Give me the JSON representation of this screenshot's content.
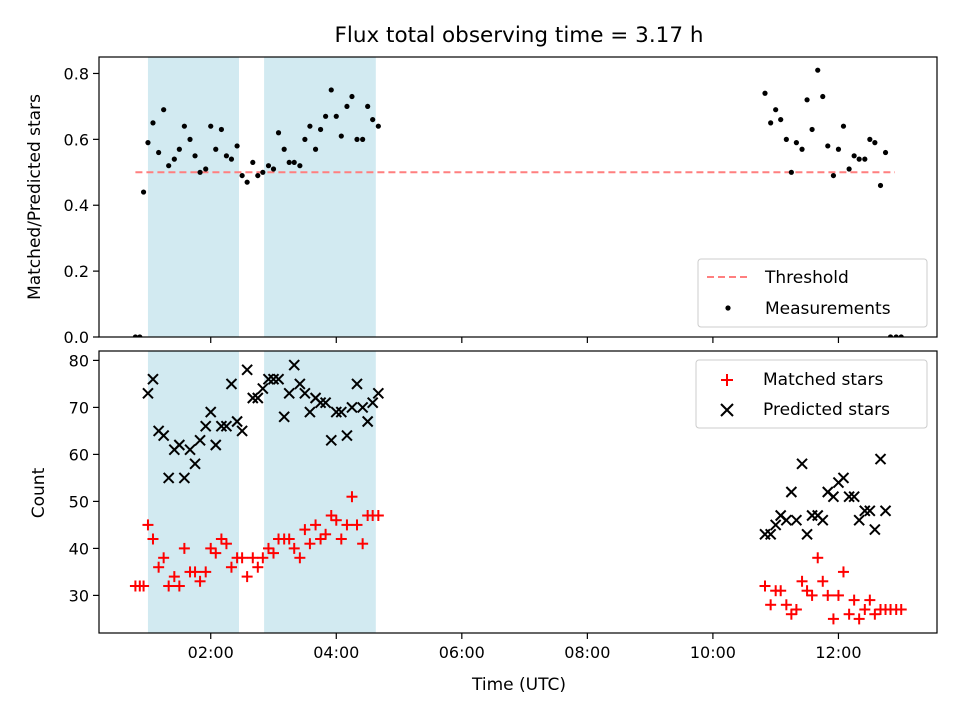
{
  "title": "Flux total observing time = 3.17 h",
  "colors": {
    "threshold": "#ff7f7f",
    "band": "#add8e6",
    "matched": "#ff0000",
    "predicted": "#000000",
    "measurement": "#000000"
  },
  "chart_data": [
    {
      "type": "scatter",
      "ylabel": "Matched/Predicted stars",
      "ylim": [
        0,
        0.85
      ],
      "yticks": [
        0.0,
        0.2,
        0.4,
        0.6,
        0.8
      ],
      "ytick_labels": [
        "0.0",
        "0.2",
        "0.4",
        "0.6",
        "0.8"
      ],
      "xlim": [
        0.22,
        13.57
      ],
      "xticks": [
        2,
        4,
        6,
        8,
        10,
        12
      ],
      "shaded_intervals": [
        [
          1.0,
          2.45
        ],
        [
          2.85,
          4.63
        ]
      ],
      "legend": {
        "position": "lower right",
        "entries": [
          "Threshold",
          "Measurements"
        ]
      },
      "threshold": {
        "name": "Threshold",
        "y": 0.5,
        "x_range": [
          0.8,
          12.9
        ],
        "style": "dashed"
      },
      "series": [
        {
          "name": "Measurements",
          "marker": "dot",
          "points": [
            [
              0.8,
              0.0
            ],
            [
              0.87,
              0.0
            ],
            [
              0.93,
              0.44
            ],
            [
              1.0,
              0.59
            ],
            [
              1.08,
              0.65
            ],
            [
              1.17,
              0.56
            ],
            [
              1.25,
              0.69
            ],
            [
              1.33,
              0.52
            ],
            [
              1.42,
              0.54
            ],
            [
              1.5,
              0.57
            ],
            [
              1.58,
              0.64
            ],
            [
              1.67,
              0.6
            ],
            [
              1.75,
              0.55
            ],
            [
              1.83,
              0.5
            ],
            [
              1.92,
              0.51
            ],
            [
              2.0,
              0.64
            ],
            [
              2.08,
              0.57
            ],
            [
              2.17,
              0.63
            ],
            [
              2.25,
              0.55
            ],
            [
              2.33,
              0.54
            ],
            [
              2.42,
              0.58
            ],
            [
              2.5,
              0.49
            ],
            [
              2.58,
              0.47
            ],
            [
              2.67,
              0.53
            ],
            [
              2.75,
              0.49
            ],
            [
              2.83,
              0.5
            ],
            [
              2.92,
              0.52
            ],
            [
              3.0,
              0.51
            ],
            [
              3.08,
              0.62
            ],
            [
              3.17,
              0.57
            ],
            [
              3.25,
              0.53
            ],
            [
              3.33,
              0.53
            ],
            [
              3.42,
              0.52
            ],
            [
              3.5,
              0.6
            ],
            [
              3.58,
              0.64
            ],
            [
              3.67,
              0.57
            ],
            [
              3.75,
              0.63
            ],
            [
              3.83,
              0.67
            ],
            [
              3.92,
              0.75
            ],
            [
              4.0,
              0.67
            ],
            [
              4.08,
              0.61
            ],
            [
              4.17,
              0.7
            ],
            [
              4.25,
              0.73
            ],
            [
              4.33,
              0.6
            ],
            [
              4.42,
              0.6
            ],
            [
              4.5,
              0.7
            ],
            [
              4.58,
              0.66
            ],
            [
              4.67,
              0.64
            ],
            [
              10.83,
              0.74
            ],
            [
              10.92,
              0.65
            ],
            [
              11.0,
              0.69
            ],
            [
              11.08,
              0.66
            ],
            [
              11.17,
              0.6
            ],
            [
              11.25,
              0.5
            ],
            [
              11.33,
              0.59
            ],
            [
              11.42,
              0.57
            ],
            [
              11.5,
              0.72
            ],
            [
              11.58,
              0.63
            ],
            [
              11.67,
              0.81
            ],
            [
              11.75,
              0.73
            ],
            [
              11.83,
              0.58
            ],
            [
              11.92,
              0.49
            ],
            [
              12.0,
              0.57
            ],
            [
              12.08,
              0.64
            ],
            [
              12.17,
              0.51
            ],
            [
              12.25,
              0.55
            ],
            [
              12.33,
              0.54
            ],
            [
              12.42,
              0.54
            ],
            [
              12.5,
              0.6
            ],
            [
              12.58,
              0.59
            ],
            [
              12.67,
              0.46
            ],
            [
              12.75,
              0.56
            ],
            [
              12.83,
              0.0
            ],
            [
              12.92,
              0.0
            ],
            [
              13.0,
              0.0
            ]
          ]
        }
      ]
    },
    {
      "type": "scatter",
      "xlabel": "Time (UTC)",
      "ylabel": "Count",
      "ylim": [
        22,
        82
      ],
      "yticks": [
        30,
        40,
        50,
        60,
        70,
        80
      ],
      "ytick_labels": [
        "30",
        "40",
        "50",
        "60",
        "70",
        "80"
      ],
      "xlim": [
        0.22,
        13.57
      ],
      "xticks": [
        2,
        4,
        6,
        8,
        10,
        12
      ],
      "xtick_labels": [
        "02:00",
        "04:00",
        "06:00",
        "08:00",
        "10:00",
        "12:00"
      ],
      "shaded_intervals": [
        [
          1.0,
          2.45
        ],
        [
          2.85,
          4.63
        ]
      ],
      "legend": {
        "position": "upper right",
        "entries": [
          "Matched stars",
          "Predicted stars"
        ]
      },
      "series": [
        {
          "name": "Matched stars",
          "marker": "plus",
          "points": [
            [
              0.8,
              32
            ],
            [
              0.87,
              32
            ],
            [
              0.93,
              32
            ],
            [
              1.0,
              45
            ],
            [
              1.08,
              42
            ],
            [
              1.17,
              36
            ],
            [
              1.25,
              38
            ],
            [
              1.33,
              32
            ],
            [
              1.42,
              34
            ],
            [
              1.5,
              32
            ],
            [
              1.58,
              40
            ],
            [
              1.67,
              35
            ],
            [
              1.75,
              35
            ],
            [
              1.83,
              33
            ],
            [
              1.92,
              35
            ],
            [
              2.0,
              40
            ],
            [
              2.08,
              39
            ],
            [
              2.17,
              42
            ],
            [
              2.25,
              41
            ],
            [
              2.33,
              36
            ],
            [
              2.42,
              38
            ],
            [
              2.5,
              38
            ],
            [
              2.58,
              34
            ],
            [
              2.67,
              38
            ],
            [
              2.75,
              36
            ],
            [
              2.83,
              38
            ],
            [
              2.92,
              40
            ],
            [
              3.0,
              39
            ],
            [
              3.08,
              42
            ],
            [
              3.17,
              42
            ],
            [
              3.25,
              42
            ],
            [
              3.33,
              40
            ],
            [
              3.42,
              38
            ],
            [
              3.5,
              44
            ],
            [
              3.58,
              41
            ],
            [
              3.67,
              45
            ],
            [
              3.75,
              42
            ],
            [
              3.83,
              43
            ],
            [
              3.92,
              47
            ],
            [
              4.0,
              46
            ],
            [
              4.08,
              42
            ],
            [
              4.17,
              45
            ],
            [
              4.25,
              51
            ],
            [
              4.33,
              45
            ],
            [
              4.42,
              41
            ],
            [
              4.5,
              47
            ],
            [
              4.58,
              47
            ],
            [
              4.67,
              47
            ],
            [
              10.83,
              32
            ],
            [
              10.92,
              28
            ],
            [
              11.0,
              31
            ],
            [
              11.08,
              31
            ],
            [
              11.17,
              28
            ],
            [
              11.25,
              26
            ],
            [
              11.33,
              27
            ],
            [
              11.42,
              33
            ],
            [
              11.5,
              31
            ],
            [
              11.58,
              30
            ],
            [
              11.67,
              38
            ],
            [
              11.75,
              33
            ],
            [
              11.83,
              30
            ],
            [
              11.92,
              25
            ],
            [
              12.0,
              30
            ],
            [
              12.08,
              35
            ],
            [
              12.17,
              26
            ],
            [
              12.25,
              29
            ],
            [
              12.33,
              25
            ],
            [
              12.42,
              27
            ],
            [
              12.5,
              29
            ],
            [
              12.58,
              26
            ],
            [
              12.67,
              27
            ],
            [
              12.75,
              27
            ],
            [
              12.83,
              27
            ],
            [
              12.92,
              27
            ],
            [
              13.0,
              27
            ]
          ]
        },
        {
          "name": "Predicted stars",
          "marker": "cross",
          "points": [
            [
              1.0,
              73
            ],
            [
              1.08,
              76
            ],
            [
              1.17,
              65
            ],
            [
              1.25,
              64
            ],
            [
              1.33,
              55
            ],
            [
              1.42,
              61
            ],
            [
              1.5,
              62
            ],
            [
              1.58,
              55
            ],
            [
              1.67,
              61
            ],
            [
              1.75,
              58
            ],
            [
              1.83,
              63
            ],
            [
              1.92,
              66
            ],
            [
              2.0,
              69
            ],
            [
              2.08,
              62
            ],
            [
              2.17,
              66
            ],
            [
              2.25,
              66
            ],
            [
              2.33,
              75
            ],
            [
              2.42,
              67
            ],
            [
              2.5,
              65
            ],
            [
              2.58,
              78
            ],
            [
              2.67,
              72
            ],
            [
              2.75,
              72
            ],
            [
              2.83,
              74
            ],
            [
              2.92,
              76
            ],
            [
              3.0,
              76
            ],
            [
              3.08,
              76
            ],
            [
              3.17,
              68
            ],
            [
              3.25,
              73
            ],
            [
              3.33,
              79
            ],
            [
              3.42,
              75
            ],
            [
              3.5,
              73
            ],
            [
              3.58,
              69
            ],
            [
              3.67,
              72
            ],
            [
              3.75,
              71
            ],
            [
              3.83,
              71
            ],
            [
              3.92,
              63
            ],
            [
              4.0,
              69
            ],
            [
              4.08,
              69
            ],
            [
              4.17,
              64
            ],
            [
              4.25,
              70
            ],
            [
              4.33,
              75
            ],
            [
              4.42,
              70
            ],
            [
              4.5,
              67
            ],
            [
              4.58,
              71
            ],
            [
              4.67,
              73
            ],
            [
              10.83,
              43
            ],
            [
              10.92,
              43
            ],
            [
              11.0,
              45
            ],
            [
              11.08,
              47
            ],
            [
              11.17,
              46
            ],
            [
              11.25,
              52
            ],
            [
              11.33,
              46
            ],
            [
              11.42,
              58
            ],
            [
              11.5,
              43
            ],
            [
              11.58,
              47
            ],
            [
              11.67,
              47
            ],
            [
              11.75,
              46
            ],
            [
              11.83,
              52
            ],
            [
              11.92,
              51
            ],
            [
              12.0,
              54
            ],
            [
              12.08,
              55
            ],
            [
              12.17,
              51
            ],
            [
              12.25,
              51
            ],
            [
              12.33,
              46
            ],
            [
              12.42,
              48
            ],
            [
              12.5,
              48
            ],
            [
              12.58,
              44
            ],
            [
              12.67,
              59
            ],
            [
              12.75,
              48
            ]
          ]
        }
      ]
    }
  ]
}
